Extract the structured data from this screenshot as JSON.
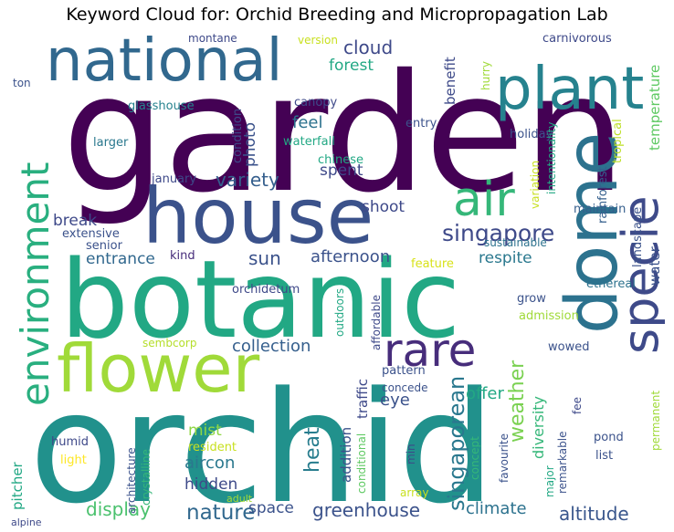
{
  "title": "Keyword Cloud for: Orchid Breeding and Micropropagation Lab",
  "words": [
    {
      "text": "garden",
      "color": "#440154"
    },
    {
      "text": "orchid",
      "color": "#21918c"
    },
    {
      "text": "botanic",
      "color": "#22a884"
    },
    {
      "text": "house",
      "color": "#3b528b"
    },
    {
      "text": "national",
      "color": "#31688e"
    },
    {
      "text": "dome",
      "color": "#2c728e"
    },
    {
      "text": "plant",
      "color": "#26828e"
    },
    {
      "text": "flower",
      "color": "#a0da39"
    },
    {
      "text": "specie",
      "color": "#3e4a89"
    },
    {
      "text": "environment",
      "color": "#29af7f"
    },
    {
      "text": "rare",
      "color": "#472d7b"
    },
    {
      "text": "air",
      "color": "#35b779"
    },
    {
      "text": "singapore",
      "color": "#3e4989"
    },
    {
      "text": "singaporean",
      "color": "#2a788e"
    },
    {
      "text": "greenhouse",
      "color": "#3b528b"
    },
    {
      "text": "nature",
      "color": "#31688e"
    },
    {
      "text": "altitude",
      "color": "#39568c"
    },
    {
      "text": "display",
      "color": "#4ac16d"
    },
    {
      "text": "weather",
      "color": "#7ad151"
    },
    {
      "text": "collection",
      "color": "#355f8d"
    },
    {
      "text": "afternoon",
      "color": "#3b528b"
    },
    {
      "text": "variety",
      "color": "#355f8d"
    },
    {
      "text": "heat",
      "color": "#287d8e"
    },
    {
      "text": "sun",
      "color": "#3b528b"
    },
    {
      "text": "cloud",
      "color": "#3e4989"
    },
    {
      "text": "climate",
      "color": "#2c728e"
    },
    {
      "text": "space",
      "color": "#3b528b"
    },
    {
      "text": "forest",
      "color": "#22a884"
    },
    {
      "text": "entrance",
      "color": "#31688e"
    },
    {
      "text": "aircon",
      "color": "#2a788e"
    },
    {
      "text": "hidden",
      "color": "#3e4a89"
    },
    {
      "text": "mist",
      "color": "#8fd744"
    },
    {
      "text": "shoot",
      "color": "#3e4989"
    },
    {
      "text": "feel",
      "color": "#2c728e"
    },
    {
      "text": "photo",
      "color": "#3b528b"
    },
    {
      "text": "spent",
      "color": "#3e4989"
    },
    {
      "text": "break",
      "color": "#3e4989"
    },
    {
      "text": "respite",
      "color": "#2a788e"
    },
    {
      "text": "offer",
      "color": "#22a884"
    },
    {
      "text": "eye",
      "color": "#3b528b"
    },
    {
      "text": "diversity",
      "color": "#35b779"
    },
    {
      "text": "benefit",
      "color": "#3e4a89"
    },
    {
      "text": "temperature",
      "color": "#5ec962"
    },
    {
      "text": "water",
      "color": "#3b528b"
    },
    {
      "text": "addition",
      "color": "#3b528b"
    },
    {
      "text": "traffic",
      "color": "#3e4989"
    },
    {
      "text": "pitcher",
      "color": "#22a884"
    },
    {
      "text": "tropical",
      "color": "#bddf26"
    },
    {
      "text": "landscape",
      "color": "#3b528b"
    },
    {
      "text": "rainforest",
      "color": "#355f8d"
    },
    {
      "text": "maintain",
      "color": "#355f8d"
    },
    {
      "text": "holiday",
      "color": "#3b528b"
    },
    {
      "text": "waterfall",
      "color": "#22a884"
    },
    {
      "text": "chinese",
      "color": "#22a884"
    },
    {
      "text": "canopy",
      "color": "#3e4989"
    },
    {
      "text": "condition",
      "color": "#3e4989"
    },
    {
      "text": "entry",
      "color": "#3b528b"
    },
    {
      "text": "glasshouse",
      "color": "#26828e"
    },
    {
      "text": "larger",
      "color": "#2a788e"
    },
    {
      "text": "january",
      "color": "#3e4989"
    },
    {
      "text": "extensive",
      "color": "#3b528b"
    },
    {
      "text": "senior",
      "color": "#3b528b"
    },
    {
      "text": "kind",
      "color": "#472d7b"
    },
    {
      "text": "orchidetum",
      "color": "#3e4989"
    },
    {
      "text": "sembcorp",
      "color": "#b5de2b"
    },
    {
      "text": "crystalline",
      "color": "#35b779"
    },
    {
      "text": "architecture",
      "color": "#3b528b"
    },
    {
      "text": "humid",
      "color": "#3e4989"
    },
    {
      "text": "light",
      "color": "#fde725"
    },
    {
      "text": "resident",
      "color": "#c8e020"
    },
    {
      "text": "adult",
      "color": "#a5db36"
    },
    {
      "text": "alpine",
      "color": "#3e4989"
    },
    {
      "text": "outdoors",
      "color": "#22a884"
    },
    {
      "text": "affordable",
      "color": "#3e4989"
    },
    {
      "text": "feature",
      "color": "#d8e219"
    },
    {
      "text": "ethereal",
      "color": "#2c728e"
    },
    {
      "text": "grow",
      "color": "#3b528b"
    },
    {
      "text": "admission",
      "color": "#a0da39"
    },
    {
      "text": "sustainable",
      "color": "#2c728e"
    },
    {
      "text": "variation",
      "color": "#c8e020"
    },
    {
      "text": "intentionality",
      "color": "#22a884"
    },
    {
      "text": "pattern",
      "color": "#3b528b"
    },
    {
      "text": "concede",
      "color": "#3b528b"
    },
    {
      "text": "wowed",
      "color": "#3b528b"
    },
    {
      "text": "conditional",
      "color": "#5ec962"
    },
    {
      "text": "min",
      "color": "#3e4989"
    },
    {
      "text": "array",
      "color": "#c8e020"
    },
    {
      "text": "concept",
      "color": "#35b779"
    },
    {
      "text": "favourite",
      "color": "#3b528b"
    },
    {
      "text": "major",
      "color": "#22a884"
    },
    {
      "text": "remarkable",
      "color": "#3b528b"
    },
    {
      "text": "fee",
      "color": "#3e4989"
    },
    {
      "text": "pond",
      "color": "#3b528b"
    },
    {
      "text": "list",
      "color": "#3b528b"
    },
    {
      "text": "permanent",
      "color": "#a0da39"
    },
    {
      "text": "montane",
      "color": "#3e4989"
    },
    {
      "text": "version",
      "color": "#c8e020"
    },
    {
      "text": "hurry",
      "color": "#a0da39"
    },
    {
      "text": "carnivorous",
      "color": "#3e4989"
    },
    {
      "text": "ton",
      "color": "#3b528b"
    }
  ]
}
